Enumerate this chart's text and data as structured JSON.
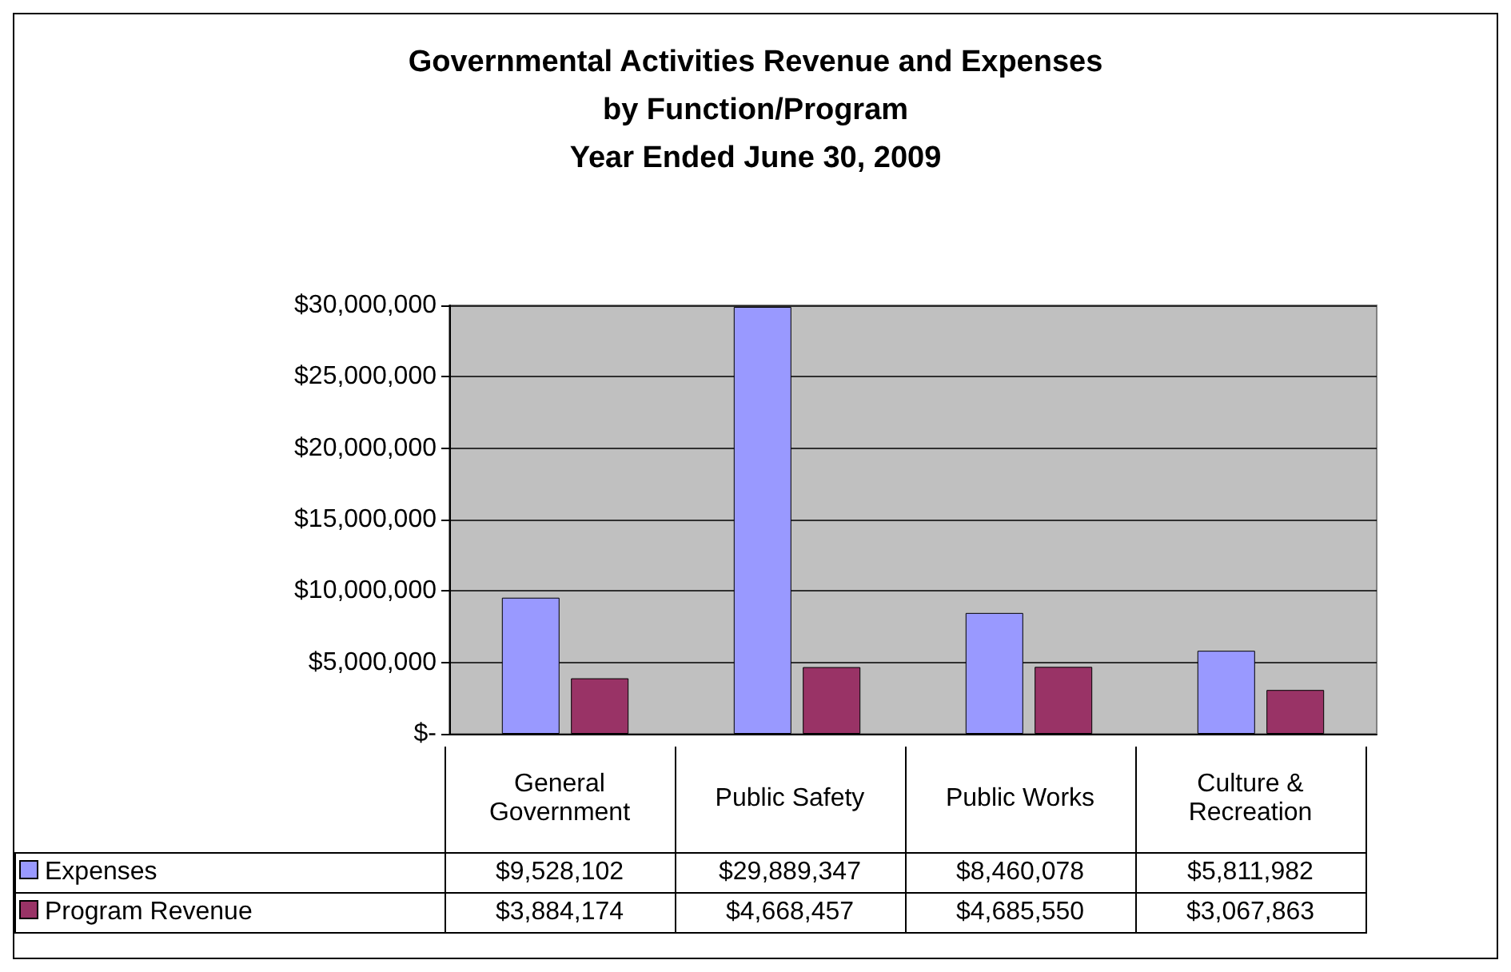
{
  "chart_data": {
    "type": "bar",
    "title": "Governmental Activities Revenue and Expenses\nby Function/Program\nYear Ended June 30, 2009",
    "categories": [
      "General Government",
      "Public Safety",
      "Public Works",
      "Culture & Recreation"
    ],
    "series": [
      {
        "name": "Expenses",
        "color": "#9999ff",
        "values": [
          9528102,
          29889347,
          8460078,
          5811982
        ],
        "value_labels": [
          "$9,528,102",
          "$29,889,347",
          "$8,460,078",
          "$5,811,982"
        ]
      },
      {
        "name": "Program Revenue",
        "color": "#993366",
        "values": [
          3884174,
          4668457,
          4685550,
          3067863
        ],
        "value_labels": [
          "$3,884,174",
          "$4,668,457",
          "$4,685,550",
          "$3,067,863"
        ]
      }
    ],
    "ylim": [
      0,
      30000000
    ],
    "yticks": [
      {
        "value": 0,
        "label": "$-"
      },
      {
        "value": 5000000,
        "label": "$5,000,000"
      },
      {
        "value": 10000000,
        "label": "$10,000,000"
      },
      {
        "value": 15000000,
        "label": "$15,000,000"
      },
      {
        "value": 20000000,
        "label": "$20,000,000"
      },
      {
        "value": 25000000,
        "label": "$25,000,000"
      },
      {
        "value": 30000000,
        "label": "$30,000,000"
      }
    ],
    "grid": "y",
    "legend": "bottom"
  }
}
